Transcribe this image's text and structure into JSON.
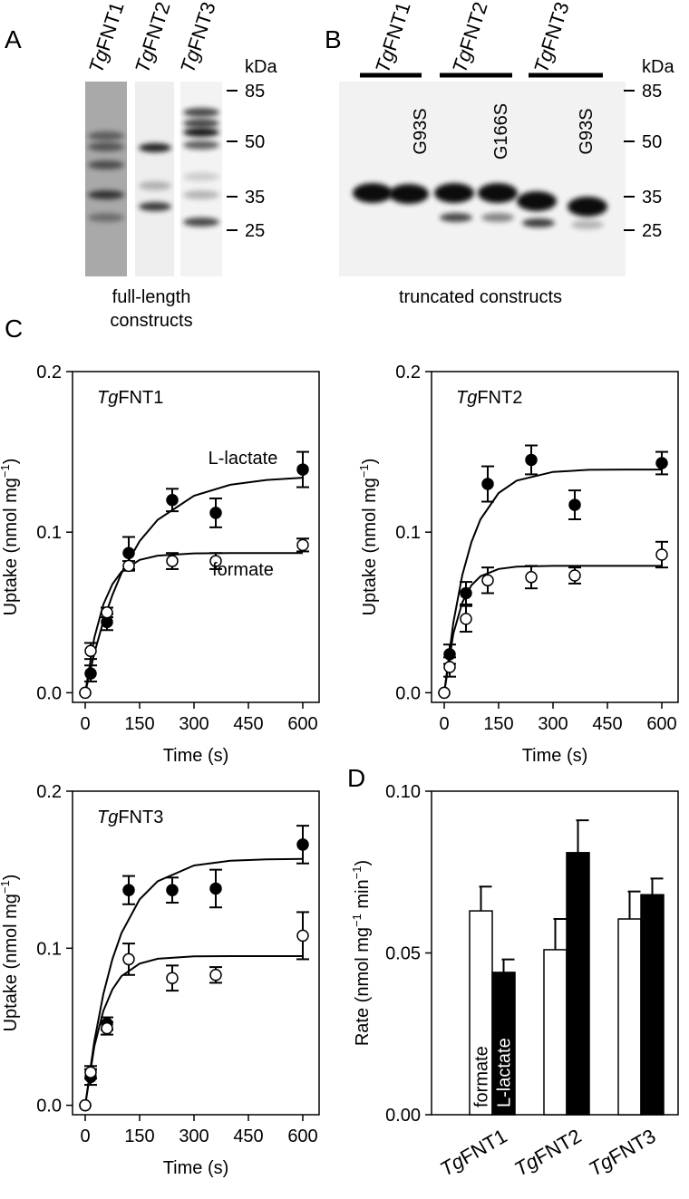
{
  "panels": [
    {
      "label": "A",
      "lanes": [
        {
          "italic": "Tg",
          "text": "FNT1"
        },
        {
          "italic": "Tg",
          "text": "FNT2"
        },
        {
          "italic": "Tg",
          "text": "FNT3"
        }
      ],
      "unit": "kDa",
      "markers": [
        85,
        50,
        35,
        25
      ],
      "caption": [
        "full-length",
        "constructs"
      ]
    },
    {
      "label": "B",
      "lanes": [
        {
          "italic": "Tg",
          "text": "FNT1"
        },
        {
          "italic": "Tg",
          "text": "FNT2"
        },
        {
          "italic": "Tg",
          "text": "FNT3"
        }
      ],
      "mutations": [
        "G93S",
        "G166S",
        "G93S"
      ],
      "unit": "kDa",
      "markers": [
        85,
        50,
        35,
        25
      ],
      "caption": [
        "truncated constructs"
      ]
    }
  ],
  "chart_data": [
    {
      "type": "scatter",
      "panel": "C",
      "title": {
        "italic": "Tg",
        "text": "FNT1"
      },
      "xlabel": "Time (s)",
      "ylabel": [
        "Uptake (nmol mg",
        "−1",
        ")"
      ],
      "x": [
        0,
        15,
        60,
        120,
        240,
        360,
        600
      ],
      "fit_x": [
        0,
        25,
        50,
        75,
        100,
        150,
        200,
        300,
        400,
        500,
        600
      ],
      "series": [
        {
          "name": "L-lactate",
          "color": "#000000",
          "marker": "filled",
          "values": [
            0,
            0.012,
            0.044,
            0.087,
            0.12,
            0.112,
            0.139
          ],
          "errors": [
            0,
            0.005,
            0.005,
            0.01,
            0.007,
            0.009,
            0.011
          ],
          "fit": [
            0,
            0.0245,
            0.0446,
            0.0609,
            0.0744,
            0.0944,
            0.1077,
            0.1227,
            0.1295,
            0.1325,
            0.1339
          ]
        },
        {
          "name": "formate",
          "color": "#000000",
          "marker": "open",
          "values": [
            0,
            0.026,
            0.05,
            0.079,
            0.082,
            0.082,
            0.092
          ],
          "errors": [
            0,
            0.005,
            0.003,
            0.003,
            0.005,
            0.005,
            0.004
          ],
          "fit": [
            0,
            0.0342,
            0.055,
            0.0676,
            0.0753,
            0.0827,
            0.0854,
            0.0868,
            0.087,
            0.087,
            0.087
          ]
        }
      ],
      "xlim": [
        -35,
        645
      ],
      "ylim": [
        -0.006,
        0.2
      ],
      "xticks": [
        0,
        150,
        300,
        450,
        600
      ],
      "yticks": [
        {
          "value": 0,
          "label": "0.0"
        },
        0.1,
        0.2
      ]
    },
    {
      "type": "scatter",
      "title": {
        "italic": "Tg",
        "text": "FNT2"
      },
      "xlabel": "Time (s)",
      "ylabel": [
        "Uptake (nmol mg",
        "−1",
        ")"
      ],
      "x": [
        0,
        15,
        60,
        120,
        240,
        360,
        600
      ],
      "fit_x": [
        0,
        25,
        50,
        75,
        100,
        150,
        200,
        300,
        400,
        500,
        600
      ],
      "series": [
        {
          "color": "#000000",
          "marker": "filled",
          "values": [
            0,
            0.024,
            0.062,
            0.13,
            0.145,
            0.117,
            0.143
          ],
          "errors": [
            0,
            0.006,
            0.007,
            0.011,
            0.009,
            0.009,
            0.007
          ],
          "fit": [
            0,
            0.0435,
            0.0734,
            0.0938,
            0.108,
            0.1244,
            0.1321,
            0.1375,
            0.1388,
            0.139,
            0.139
          ]
        },
        {
          "color": "#000000",
          "marker": "open",
          "values": [
            0,
            0.016,
            0.046,
            0.07,
            0.072,
            0.073,
            0.086
          ],
          "errors": [
            0,
            0.006,
            0.008,
            0.008,
            0.007,
            0.005,
            0.008
          ],
          "fit": [
            0,
            0.0367,
            0.0563,
            0.0669,
            0.0725,
            0.0771,
            0.0785,
            0.079,
            0.079,
            0.079,
            0.079
          ]
        }
      ],
      "xlim": [
        -35,
        645
      ],
      "ylim": [
        -0.006,
        0.2
      ],
      "xticks": [
        0,
        150,
        300,
        450,
        600
      ],
      "yticks": [
        {
          "value": 0,
          "label": "0.0"
        },
        0.1,
        0.2
      ]
    },
    {
      "type": "scatter",
      "title": {
        "italic": "Tg",
        "text": "FNT3"
      },
      "xlabel": "Time (s)",
      "ylabel": [
        "Uptake (nmol mg",
        "−1",
        ")"
      ],
      "x": [
        0,
        15,
        60,
        120,
        240,
        360,
        600
      ],
      "fit_x": [
        0,
        25,
        50,
        75,
        100,
        150,
        200,
        300,
        400,
        500,
        600
      ],
      "series": [
        {
          "color": "#000000",
          "marker": "filled",
          "values": [
            0,
            0.018,
            0.052,
            0.137,
            0.137,
            0.138,
            0.166
          ],
          "errors": [
            0,
            0.005,
            0.004,
            0.009,
            0.008,
            0.012,
            0.012
          ],
          "fit": [
            0,
            0.0407,
            0.0708,
            0.0931,
            0.1097,
            0.1311,
            0.1427,
            0.1527,
            0.1557,
            0.1566,
            0.1569
          ]
        },
        {
          "color": "#000000",
          "marker": "open",
          "values": [
            0,
            0.021,
            0.049,
            0.093,
            0.081,
            0.083,
            0.108
          ],
          "errors": [
            0,
            0.004,
            0.004,
            0.01,
            0.008,
            0.005,
            0.015
          ],
          "fit": [
            0,
            0.0374,
            0.0601,
            0.0738,
            0.0822,
            0.0902,
            0.0933,
            0.0948,
            0.095,
            0.095,
            0.095
          ]
        }
      ],
      "xlim": [
        -35,
        645
      ],
      "ylim": [
        -0.006,
        0.2
      ],
      "xticks": [
        0,
        150,
        300,
        450,
        600
      ],
      "yticks": [
        {
          "value": 0,
          "label": "0.0"
        },
        0.1,
        0.2
      ]
    },
    {
      "type": "bar",
      "panel": "D",
      "ylabel": [
        "Rate (nmol mg",
        "−1",
        " min",
        "−1",
        ")"
      ],
      "categories": [
        {
          "italic": "Tg",
          "text": "FNT1"
        },
        {
          "italic": "Tg",
          "text": "FNT2"
        },
        {
          "italic": "Tg",
          "text": "FNT3"
        }
      ],
      "series": [
        {
          "name": "formate",
          "color": "#ffffff",
          "values": [
            0.063,
            0.051,
            0.0605
          ],
          "errors": [
            0.0075,
            0.0095,
            0.0085
          ]
        },
        {
          "name": "L-lactate",
          "color": "#000000",
          "values": [
            0.044,
            0.081,
            0.068
          ],
          "errors": [
            0.004,
            0.01,
            0.005
          ]
        }
      ],
      "ylim": [
        0,
        0.1
      ],
      "yticks": [
        {
          "value": 0,
          "label": "0.00"
        },
        {
          "value": 0.05,
          "label": "0.05"
        },
        {
          "value": 0.1,
          "label": "0.10"
        }
      ]
    }
  ]
}
